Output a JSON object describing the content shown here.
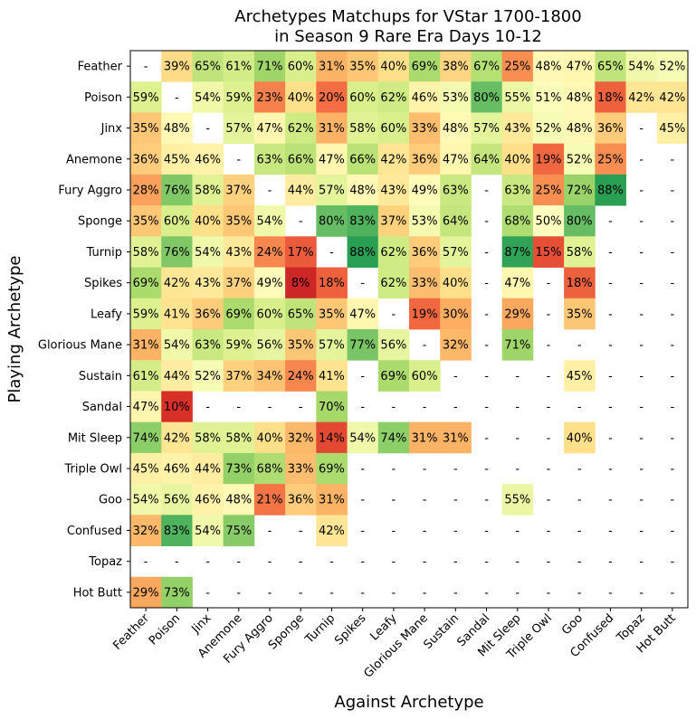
{
  "chart_data": {
    "type": "heatmap",
    "title": [
      "Archetypes Matchups for VStar 1700-1800",
      "in Season 9 Rare Era Days 10-12"
    ],
    "xlabel": "Against Archetype",
    "ylabel": "Playing Archetype",
    "rows": [
      "Feather",
      "Poison",
      "Jinx",
      "Anemone",
      "Fury Aggro",
      "Sponge",
      "Turnip",
      "Spikes",
      "Leafy",
      "Glorious Mane",
      "Sustain",
      "Sandal",
      "Mit Sleep",
      "Triple Owl",
      "Goo",
      "Confused",
      "Topaz",
      "Hot Butt"
    ],
    "cols": [
      "Feather",
      "Poison",
      "Jinx",
      "Anemone",
      "Fury Aggro",
      "Sponge",
      "Turnip",
      "Spikes",
      "Leafy",
      "Glorious Mane",
      "Sustain",
      "Sandal",
      "Mit Sleep",
      "Triple Owl",
      "Goo",
      "Confused",
      "Topaz",
      "Hot Butt"
    ],
    "colormap": "RdYlGn",
    "value_range": [
      0,
      100
    ],
    "values": [
      [
        null,
        39,
        65,
        61,
        71,
        60,
        31,
        35,
        40,
        69,
        38,
        67,
        25,
        48,
        47,
        65,
        54,
        52
      ],
      [
        59,
        null,
        54,
        59,
        23,
        40,
        20,
        60,
        62,
        46,
        53,
        80,
        55,
        51,
        48,
        18,
        42,
        42
      ],
      [
        35,
        48,
        null,
        57,
        47,
        62,
        31,
        58,
        60,
        33,
        48,
        57,
        43,
        52,
        48,
        36,
        null,
        45
      ],
      [
        36,
        45,
        46,
        null,
        63,
        66,
        47,
        66,
        42,
        36,
        47,
        64,
        40,
        19,
        52,
        25,
        null,
        null
      ],
      [
        28,
        76,
        58,
        37,
        null,
        44,
        57,
        48,
        43,
        49,
        63,
        null,
        63,
        25,
        72,
        88,
        null,
        null
      ],
      [
        35,
        60,
        40,
        35,
        54,
        null,
        80,
        83,
        37,
        53,
        64,
        null,
        68,
        50,
        80,
        null,
        null,
        null
      ],
      [
        58,
        76,
        54,
        43,
        24,
        17,
        null,
        88,
        62,
        36,
        57,
        null,
        87,
        15,
        58,
        null,
        null,
        null
      ],
      [
        69,
        42,
        43,
        37,
        49,
        8,
        18,
        null,
        62,
        33,
        40,
        null,
        47,
        null,
        18,
        null,
        null,
        null
      ],
      [
        59,
        41,
        36,
        69,
        60,
        65,
        35,
        47,
        null,
        19,
        30,
        null,
        29,
        null,
        35,
        null,
        null,
        null
      ],
      [
        31,
        54,
        63,
        59,
        56,
        35,
        57,
        77,
        56,
        null,
        32,
        null,
        71,
        null,
        null,
        null,
        null,
        null
      ],
      [
        61,
        44,
        52,
        37,
        34,
        24,
        41,
        null,
        69,
        60,
        null,
        null,
        null,
        null,
        45,
        null,
        null,
        null
      ],
      [
        47,
        10,
        null,
        null,
        null,
        null,
        70,
        null,
        null,
        null,
        null,
        null,
        null,
        null,
        null,
        null,
        null,
        null
      ],
      [
        74,
        42,
        58,
        58,
        40,
        32,
        14,
        54,
        74,
        31,
        31,
        null,
        null,
        null,
        40,
        null,
        null,
        null
      ],
      [
        45,
        46,
        44,
        73,
        68,
        33,
        69,
        null,
        null,
        null,
        null,
        null,
        null,
        null,
        null,
        null,
        null,
        null
      ],
      [
        54,
        56,
        46,
        48,
        21,
        36,
        31,
        null,
        null,
        null,
        null,
        null,
        55,
        null,
        null,
        null,
        null,
        null
      ],
      [
        32,
        83,
        54,
        75,
        null,
        null,
        42,
        null,
        null,
        null,
        null,
        null,
        null,
        null,
        null,
        null,
        null,
        null
      ],
      [
        null,
        null,
        null,
        null,
        null,
        null,
        null,
        null,
        null,
        null,
        null,
        null,
        null,
        null,
        null,
        null,
        null,
        null
      ],
      [
        29,
        73,
        null,
        null,
        null,
        null,
        null,
        null,
        null,
        null,
        null,
        null,
        null,
        null,
        null,
        null,
        null,
        null
      ]
    ],
    "missing_label": "-",
    "value_suffix": "%"
  }
}
